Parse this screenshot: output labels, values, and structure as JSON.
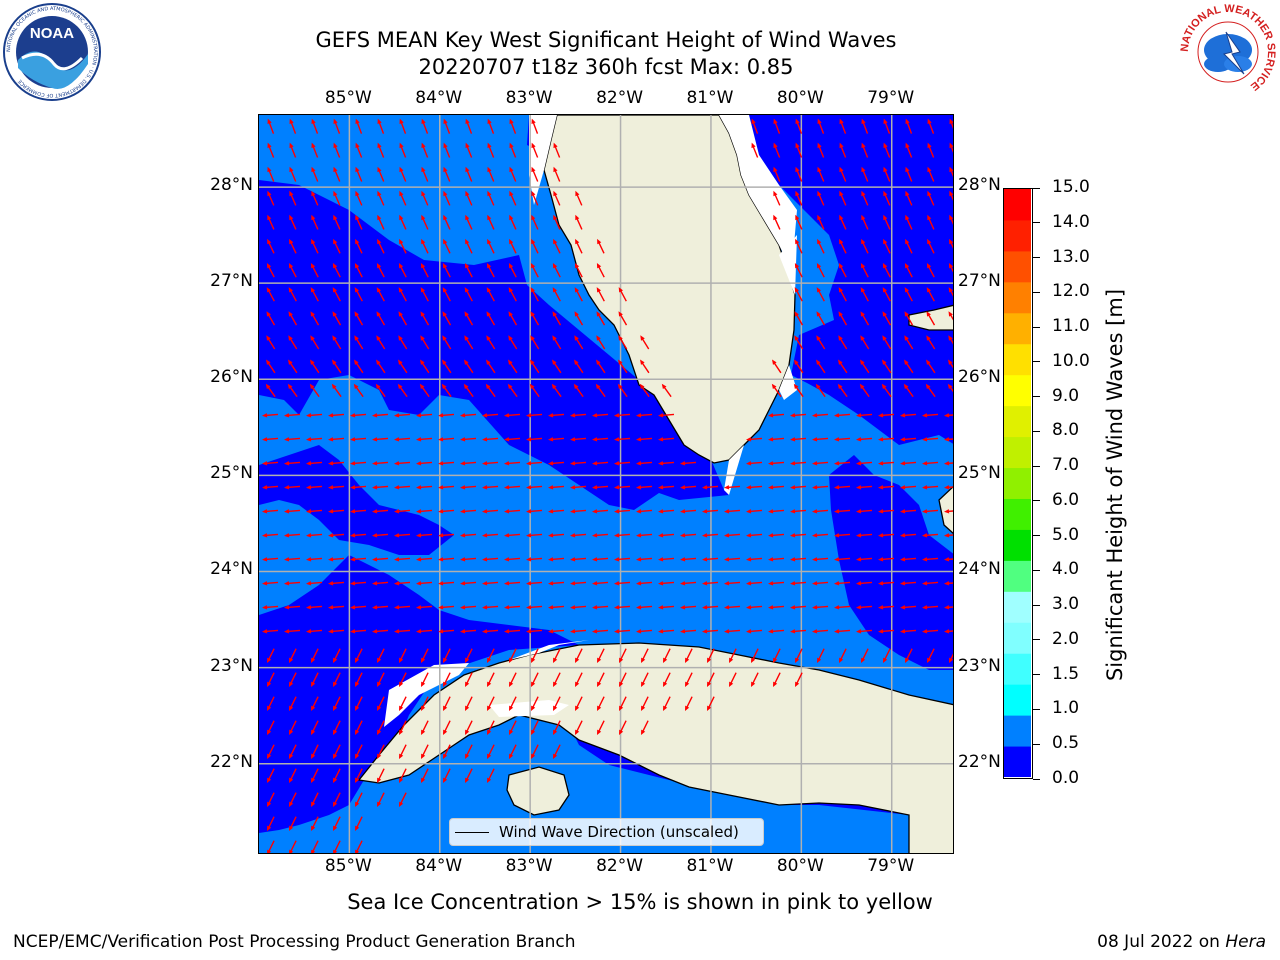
{
  "title": {
    "line1": "GEFS MEAN Key West Significant Height of Wind Waves",
    "line2": "20220707 t18z 360h fcst   Max: 0.85"
  },
  "map": {
    "lon_ticks": [
      "85°W",
      "84°W",
      "83°W",
      "82°W",
      "81°W",
      "80°W",
      "79°W"
    ],
    "lat_ticks": [
      "28°N",
      "27°N",
      "26°N",
      "25°N",
      "24°N",
      "23°N",
      "22°N"
    ],
    "extent": {
      "lon_min": -86.0,
      "lon_max": -78.3,
      "lat_min": 21.05,
      "lat_max": 28.75
    },
    "land_color": "#efefdb",
    "grid_color": "#b0b0b0",
    "arrow_color": "#ff0000",
    "legend_label": "Wind Wave Direction (unscaled)"
  },
  "colorbar": {
    "label": "Significant Height of Wind Waves [m]",
    "tick_labels": [
      "0.0",
      "0.5",
      "1.0",
      "1.5",
      "2.0",
      "3.0",
      "4.0",
      "5.0",
      "6.0",
      "7.0",
      "8.0",
      "9.0",
      "10.0",
      "11.0",
      "12.0",
      "13.0",
      "14.0",
      "15.0"
    ],
    "colors": [
      "#0000ff",
      "#0080ff",
      "#00ffff",
      "#40ffff",
      "#80ffff",
      "#a0ffff",
      "#50ff80",
      "#00e000",
      "#40f000",
      "#90f000",
      "#c0f000",
      "#e0f000",
      "#ffff00",
      "#ffe000",
      "#ffb000",
      "#ff8000",
      "#ff5000",
      "#ff2000",
      "#ff0000"
    ]
  },
  "footer": {
    "note": "Sea Ice Concentration > 15% is shown in pink to yellow",
    "left": "NCEP/EMC/Verification Post Processing Product Generation Branch",
    "right_date": "08 Jul 2022 on ",
    "right_host": "Hera"
  },
  "logos": {
    "noaa_text": "NOAA",
    "noaa_ring": "NATIONAL OCEANIC AND ATMOSPHERIC ADMINISTRATION · U.S. DEPARTMENT OF COMMERCE",
    "nws_ring": "NATIONAL WEATHER SERVICE"
  }
}
